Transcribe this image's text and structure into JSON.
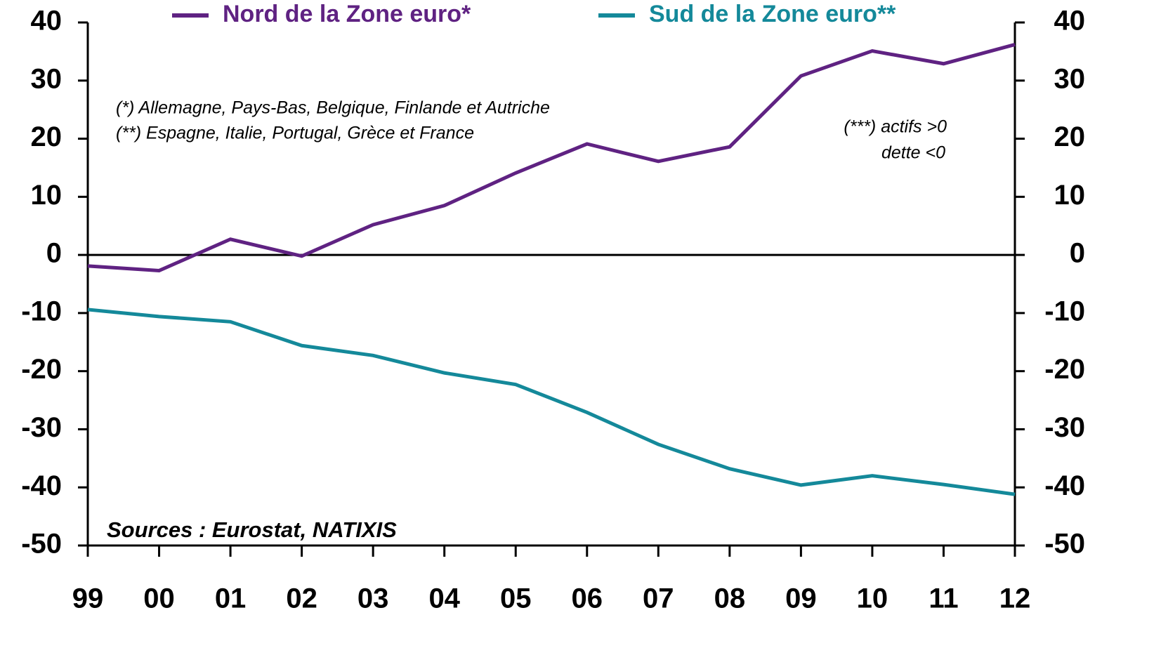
{
  "chart_data": {
    "type": "line",
    "categories": [
      "99",
      "00",
      "01",
      "02",
      "03",
      "04",
      "05",
      "06",
      "07",
      "08",
      "09",
      "10",
      "11",
      "12"
    ],
    "series": [
      {
        "name": "Nord de la Zone euro*",
        "color": "#5f2282",
        "values": [
          -1.9,
          -2.7,
          2.7,
          -0.2,
          5.2,
          8.5,
          14.1,
          19.1,
          16.1,
          18.6,
          30.8,
          35.1,
          32.9,
          36.2
        ]
      },
      {
        "name": "Sud de la Zone euro**",
        "color": "#14899a",
        "values": [
          -9.4,
          -10.6,
          -11.5,
          -15.6,
          -17.3,
          -20.3,
          -22.3,
          -27.1,
          -32.6,
          -36.8,
          -39.6,
          -38.0,
          -39.5,
          -41.2
        ]
      }
    ],
    "ylim": [
      -50,
      40
    ],
    "yticks": [
      -50,
      -40,
      -30,
      -20,
      -10,
      0,
      10,
      20,
      30,
      40
    ],
    "y2lim": [
      -50,
      40
    ],
    "y2ticks": [
      -50,
      -40,
      -30,
      -20,
      -10,
      0,
      10,
      20,
      30,
      40
    ],
    "annotations": [
      "(*) Allemagne, Pays-Bas, Belgique, Finlande et Autriche",
      "(**) Espagne, Italie, Portugal, Grèce et France",
      "(***) actifs >0",
      "dette <0"
    ],
    "source": "Sources : Eurostat, NATIXIS"
  }
}
